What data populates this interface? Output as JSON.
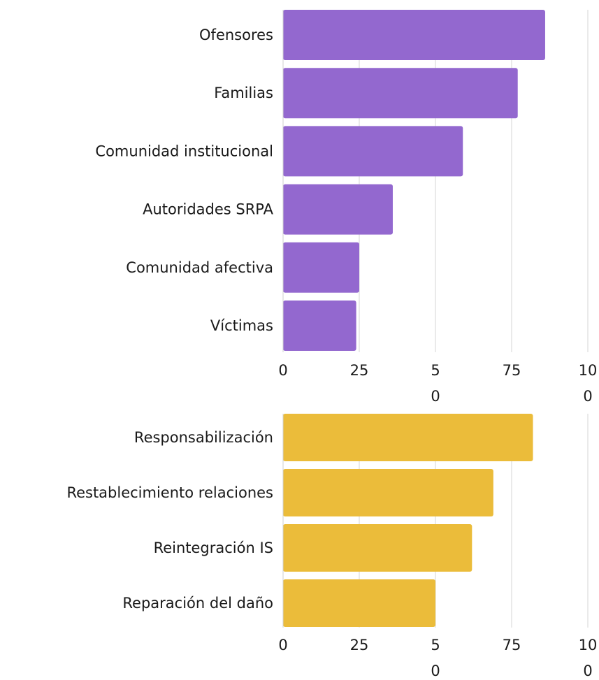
{
  "chart_data": [
    {
      "type": "bar",
      "orientation": "horizontal",
      "categories": [
        "Ofensores",
        "Familias",
        "Comunidad institucional",
        "Autoridades SRPA",
        "Comunidad afectiva",
        "Víctimas"
      ],
      "values": [
        86,
        77,
        59,
        36,
        25,
        24
      ],
      "color": "#9368CF",
      "xlim": [
        0,
        100
      ],
      "ticks": [
        0,
        25,
        50,
        75,
        100
      ],
      "tick_labels": [
        [
          "0"
        ],
        [
          "25"
        ],
        [
          "5",
          "0"
        ],
        [
          "75"
        ],
        [
          "10",
          "0"
        ]
      ],
      "grid": "vertical"
    },
    {
      "type": "bar",
      "orientation": "horizontal",
      "categories": [
        "Responsabilización",
        "Restablecimiento relaciones",
        "Reintegración IS",
        "Reparación del daño"
      ],
      "values": [
        82,
        69,
        62,
        50
      ],
      "color": "#EBBC3A",
      "xlim": [
        0,
        100
      ],
      "ticks": [
        0,
        25,
        50,
        75,
        100
      ],
      "tick_labels": [
        [
          "0"
        ],
        [
          "25"
        ],
        [
          "5",
          "0"
        ],
        [
          "75"
        ],
        [
          "10",
          "0"
        ]
      ],
      "grid": "vertical"
    }
  ]
}
